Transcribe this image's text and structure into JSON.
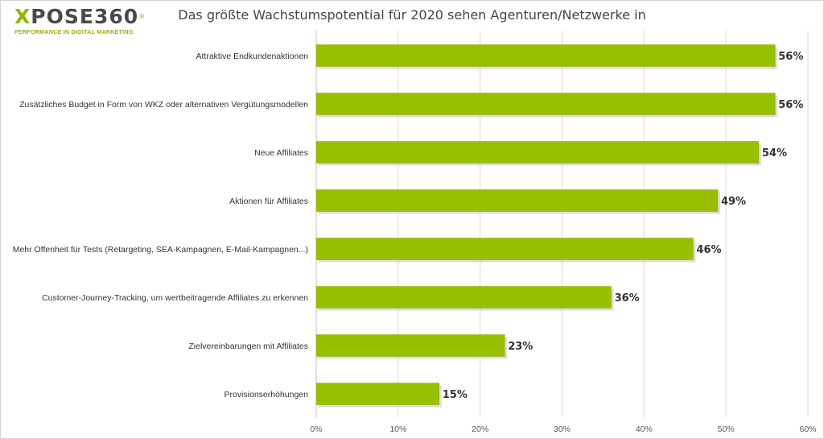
{
  "brand": {
    "name_part1": "X",
    "name_part2": "POSE360",
    "registered": "®",
    "tagline": "PERFORMANCE IN DIGITAL MARKETING"
  },
  "colors": {
    "bar": "#99c000",
    "bar_stroke": "#8aae00",
    "grid": "#d9d9d9",
    "text": "#333333",
    "brand_green": "#8cb80a"
  },
  "chart_data": {
    "type": "bar",
    "orientation": "horizontal",
    "title": "Das größte Wachstumspotential für 2020 sehen Agenturen/Netzwerke in",
    "categories": [
      "Attraktive Endkundenaktionen",
      "Zusätzliches Budget in Form von WKZ oder alternativen Vergütungsmodellen",
      "Neue Affiliates",
      "Aktionen für Affiliates",
      "Mehr Offenheit für Tests (Retargeting, SEA-Kampagnen, E-Mail-Kampagnen...)",
      "Customer-Journey-Tracking, um wertbeitragende Affiliates zu erkennen",
      "Zielvereinbarungen mit Affiliates",
      "Provisionserhöhungen"
    ],
    "values": [
      56,
      56,
      54,
      49,
      46,
      36,
      23,
      15
    ],
    "value_labels": [
      "56%",
      "56%",
      "54%",
      "49%",
      "46%",
      "36%",
      "23%",
      "15%"
    ],
    "xlim": [
      0,
      60
    ],
    "x_ticks": [
      0,
      10,
      20,
      30,
      40,
      50,
      60
    ],
    "x_tick_labels": [
      "0%",
      "10%",
      "20%",
      "30%",
      "40%",
      "50%",
      "60%"
    ],
    "grid": true,
    "legend": "none"
  }
}
